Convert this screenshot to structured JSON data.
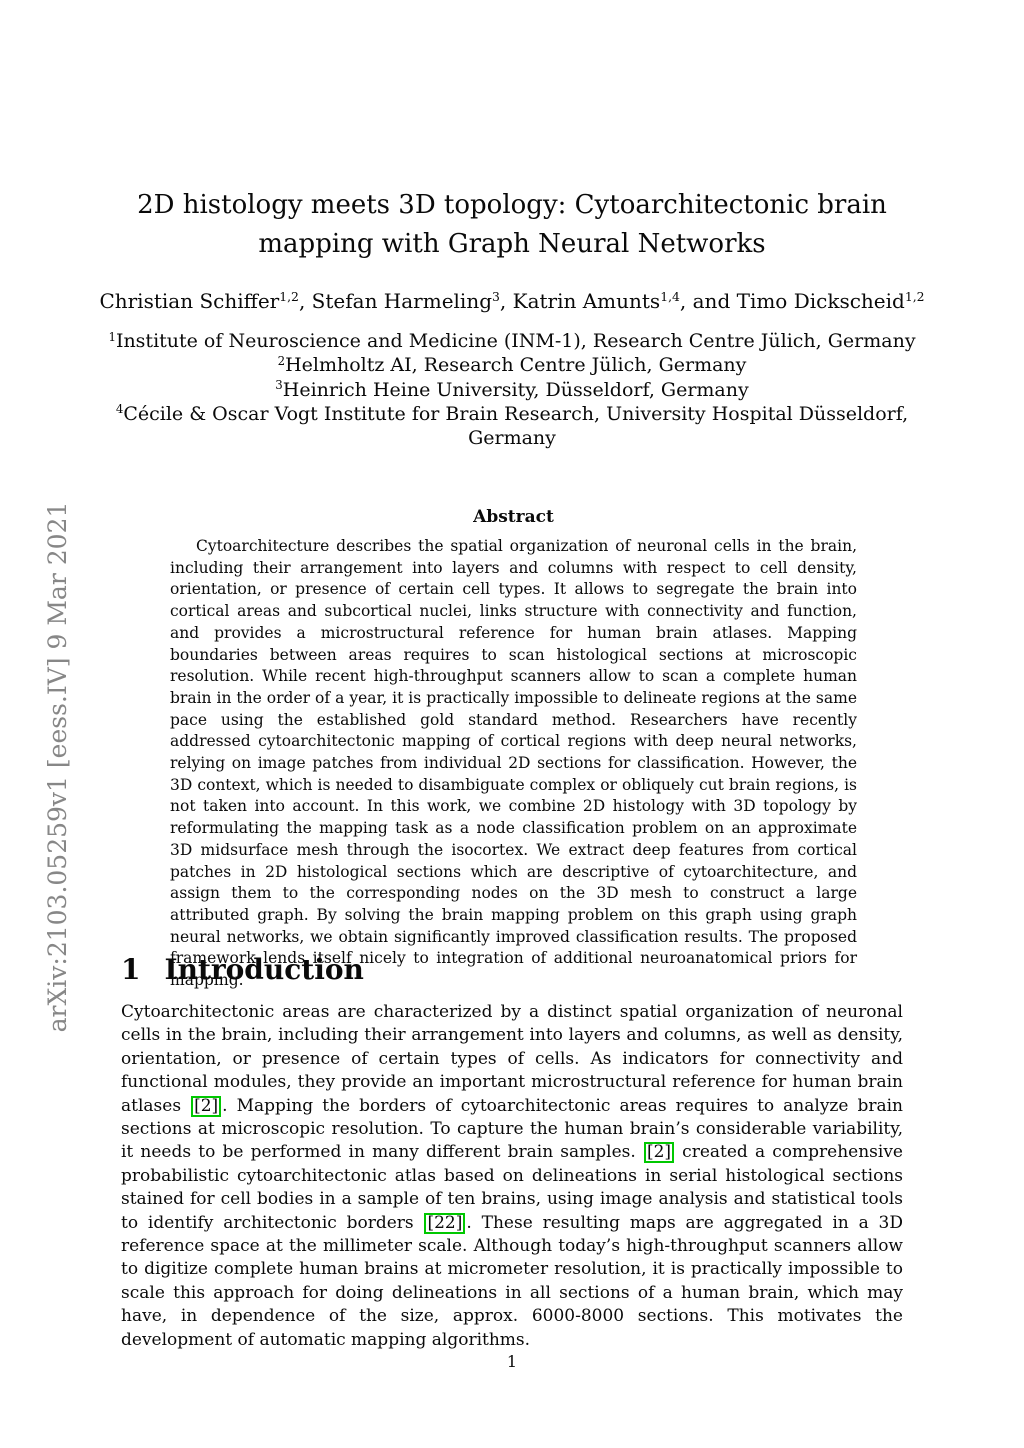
{
  "arxiv_stamp": "arXiv:2103.05259v1  [eess.IV]  9 Mar 2021",
  "title": {
    "lines": [
      "2D histology meets 3D topology: Cytoarchitectonic brain",
      "mapping with Graph Neural Networks"
    ]
  },
  "authors": {
    "segments": [
      {
        "type": "text",
        "value": "Christian Schiffer"
      },
      {
        "type": "sup",
        "value": "1,2"
      },
      {
        "type": "text",
        "value": ", Stefan Harmeling"
      },
      {
        "type": "sup",
        "value": "3"
      },
      {
        "type": "text",
        "value": ", Katrin Amunts"
      },
      {
        "type": "sup",
        "value": "1,4"
      },
      {
        "type": "text",
        "value": ", and Timo Dickscheid"
      },
      {
        "type": "sup",
        "value": "1,2"
      }
    ]
  },
  "affiliations": [
    {
      "marker": "1",
      "lines": [
        "Institute of Neuroscience and Medicine (INM-1), Research Centre Jülich, Germany"
      ]
    },
    {
      "marker": "2",
      "lines": [
        "Helmholtz AI, Research Centre Jülich, Germany"
      ]
    },
    {
      "marker": "3",
      "lines": [
        "Heinrich Heine University, Düsseldorf, Germany"
      ]
    },
    {
      "marker": "4",
      "lines": [
        "Cécile & Oscar Vogt Institute for Brain Research, University Hospital Düsseldorf,",
        "Germany"
      ]
    }
  ],
  "abstract": {
    "heading": "Abstract",
    "text": "Cytoarchitecture describes the spatial organization of neuronal cells in the brain, including their arrangement into layers and columns with respect to cell density, orientation, or presence of certain cell types. It allows to segregate the brain into cortical areas and subcortical nuclei, links structure with connectivity and function, and provides a microstructural reference for human brain atlases. Mapping boundaries between areas requires to scan histological sections at microscopic resolution. While recent high-throughput scanners allow to scan a complete human brain in the order of a year, it is practically impossible to delineate regions at the same pace using the established gold standard method. Researchers have recently addressed cytoarchitectonic mapping of cortical regions with deep neural networks, relying on image patches from individual 2D sections for classification. However, the 3D context, which is needed to disambiguate complex or obliquely cut brain regions, is not taken into account. In this work, we combine 2D histology with 3D topology by reformulating the mapping task as a node classification problem on an approximate 3D midsurface mesh through the isocortex. We extract deep features from cortical patches in 2D histological sections which are descriptive of cytoarchitecture, and assign them to the corresponding nodes on the 3D mesh to construct a large attributed graph. By solving the brain mapping problem on this graph using graph neural networks, we obtain significantly improved classification results. The proposed framework lends itself nicely to integration of additional neuroanatomical priors for mapping."
  },
  "introduction": {
    "number": "1",
    "heading": "Introduction",
    "segments": [
      {
        "type": "text",
        "value": "Cytoarchitectonic areas are characterized by a distinct spatial organization of neuronal cells in the brain, including their arrangement into layers and columns, as well as density, orientation, or presence of certain types of cells. As indicators for connectivity and functional modules, they provide an important microstructural reference for human brain atlases "
      },
      {
        "type": "cite",
        "value": "2"
      },
      {
        "type": "text",
        "value": ". Mapping the borders of cytoarchitectonic areas requires to analyze brain sections at microscopic resolution. To capture the human brain’s considerable variability, it needs to be performed in many different brain samples. "
      },
      {
        "type": "cite",
        "value": "2"
      },
      {
        "type": "text",
        "value": " created a comprehensive probabilistic cytoarchitectonic atlas based on delineations in serial histological sections stained for cell bodies in a sample of ten brains, using image analysis and statistical tools to identify architectonic borders "
      },
      {
        "type": "cite",
        "value": "22"
      },
      {
        "type": "text",
        "value": ". These resulting maps are aggregated in a 3D reference space at the millimeter scale. Although today’s high-throughput scanners allow to digitize complete human brains at micrometer resolution, it is practically impossible to scale this approach for doing delineations in all sections of a human brain, which may have, in dependence of the size, approx. 6000-8000 sections. This motivates the development of automatic mapping algorithms."
      }
    ]
  },
  "page": {
    "number": "1"
  },
  "colors": {
    "citation_border": "#00c800",
    "stamp_gray": "#878787"
  }
}
